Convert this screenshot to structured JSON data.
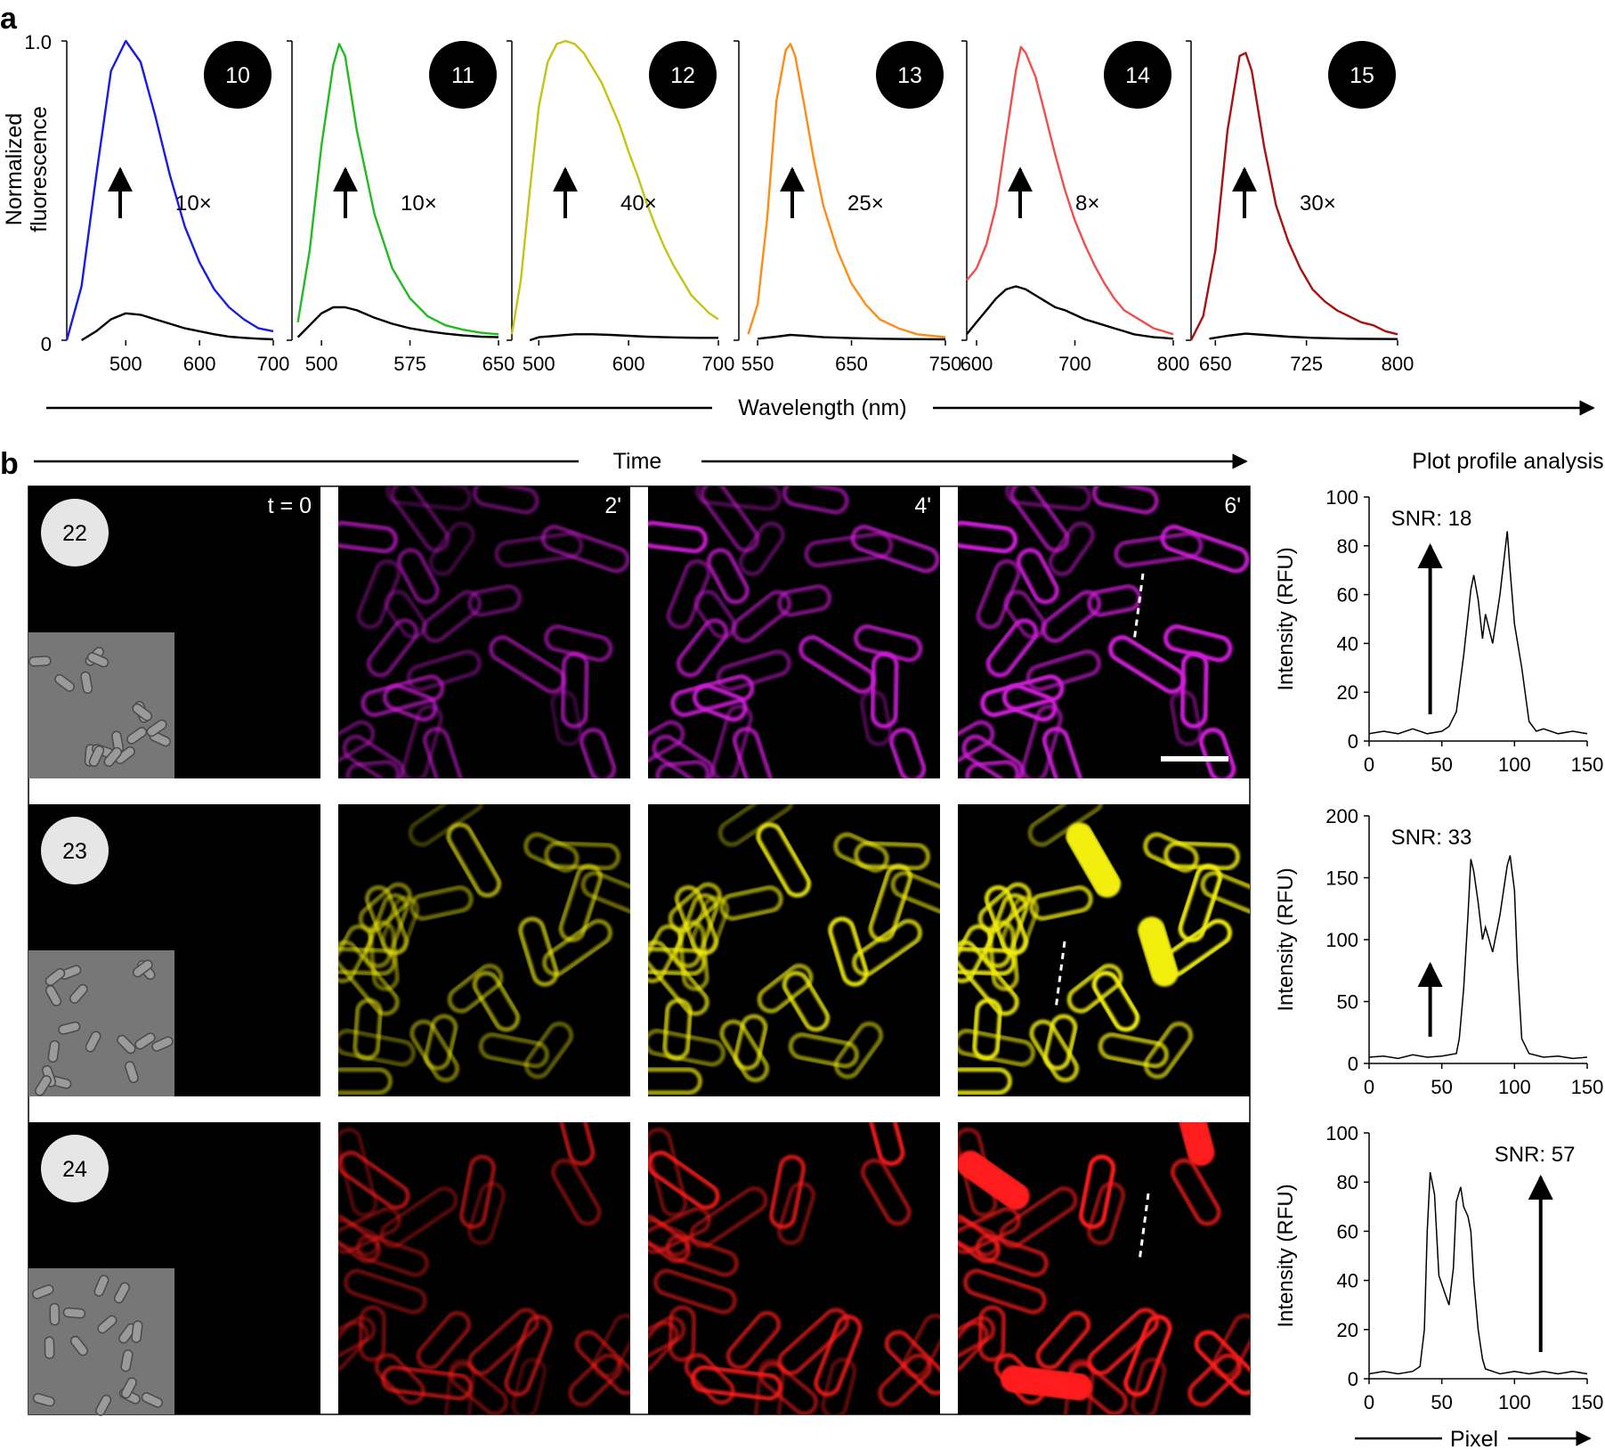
{
  "panel_a": {
    "letter": "a",
    "ylabel_line1": "Normalized",
    "ylabel_line2": "fluorescence",
    "xlabel": "Wavelength (nm)",
    "y_tick_top": "1.0",
    "y_tick_bottom": "0",
    "colors": [
      "#1a1ae6",
      "#22bb22",
      "#c4c414",
      "#ff8c14",
      "#ef4f4f",
      "#a81212"
    ]
  },
  "panel_b": {
    "letter": "b",
    "time_label": "Time",
    "plot_title": "Plot profile analysis",
    "time_points": [
      "t = 0",
      "2'",
      "4'",
      "6'"
    ],
    "rows": [
      {
        "compound": "22",
        "tint": "#d11fd9"
      },
      {
        "compound": "23",
        "tint": "#f2ee0d"
      },
      {
        "compound": "24",
        "tint": "#ff1a1a"
      }
    ],
    "xlabel": "Pixel",
    "ylabel": "Intensity (RFU)"
  },
  "chart_data": [
    {
      "type": "line",
      "compound": "10",
      "fold": "10×",
      "xlim": [
        420,
        700
      ],
      "ylim": [
        0,
        1
      ],
      "xticks": [
        "500",
        "600",
        "700"
      ],
      "series": [
        {
          "color": "#1a1ae6",
          "x": [
            420,
            440,
            460,
            480,
            500,
            520,
            540,
            560,
            580,
            600,
            620,
            640,
            660,
            680,
            700
          ],
          "y": [
            0,
            0.18,
            0.55,
            0.9,
            1.0,
            0.93,
            0.75,
            0.55,
            0.38,
            0.26,
            0.17,
            0.11,
            0.07,
            0.04,
            0.03
          ]
        },
        {
          "color": "#000000",
          "x": [
            440,
            460,
            480,
            500,
            520,
            540,
            560,
            580,
            600,
            620,
            640,
            660,
            680,
            700
          ],
          "y": [
            0,
            0.03,
            0.07,
            0.09,
            0.085,
            0.07,
            0.055,
            0.04,
            0.03,
            0.02,
            0.012,
            0.008,
            0.005,
            0.003
          ]
        }
      ]
    },
    {
      "type": "line",
      "compound": "11",
      "fold": "10×",
      "xlim": [
        475,
        650
      ],
      "ylim": [
        0,
        1
      ],
      "xticks": [
        "500",
        "575",
        "650"
      ],
      "series": [
        {
          "color": "#22bb22",
          "x": [
            480,
            490,
            500,
            510,
            515,
            520,
            530,
            545,
            560,
            575,
            590,
            605,
            620,
            635,
            650
          ],
          "y": [
            0.06,
            0.3,
            0.65,
            0.92,
            0.99,
            0.95,
            0.7,
            0.42,
            0.24,
            0.14,
            0.08,
            0.05,
            0.035,
            0.025,
            0.02
          ]
        },
        {
          "color": "#000000",
          "x": [
            480,
            490,
            500,
            510,
            520,
            530,
            545,
            560,
            575,
            590,
            605,
            620,
            635,
            650
          ],
          "y": [
            0.01,
            0.05,
            0.09,
            0.11,
            0.11,
            0.1,
            0.075,
            0.055,
            0.04,
            0.03,
            0.022,
            0.016,
            0.012,
            0.01
          ]
        }
      ]
    },
    {
      "type": "line",
      "compound": "12",
      "fold": "40×",
      "xlim": [
        470,
        700
      ],
      "ylim": [
        0,
        1
      ],
      "xticks": [
        "500",
        "600",
        "700"
      ],
      "series": [
        {
          "color": "#c4c414",
          "x": [
            470,
            480,
            490,
            500,
            510,
            520,
            530,
            540,
            550,
            560,
            570,
            580,
            590,
            600,
            610,
            620,
            630,
            640,
            650,
            660,
            670,
            680,
            690,
            700
          ],
          "y": [
            0.02,
            0.2,
            0.5,
            0.78,
            0.93,
            0.99,
            1.0,
            0.99,
            0.96,
            0.91,
            0.86,
            0.79,
            0.72,
            0.63,
            0.55,
            0.46,
            0.38,
            0.31,
            0.25,
            0.2,
            0.15,
            0.12,
            0.09,
            0.07
          ]
        },
        {
          "color": "#000000",
          "x": [
            490,
            500,
            520,
            540,
            560,
            580,
            600,
            620,
            640,
            660,
            680,
            700
          ],
          "y": [
            0,
            0.01,
            0.015,
            0.02,
            0.02,
            0.018,
            0.015,
            0.012,
            0.01,
            0.009,
            0.008,
            0.008
          ]
        }
      ]
    },
    {
      "type": "line",
      "compound": "13",
      "fold": "25×",
      "xlim": [
        530,
        750
      ],
      "ylim": [
        0,
        1
      ],
      "xticks": [
        "550",
        "650",
        "750"
      ],
      "series": [
        {
          "color": "#ff8c14",
          "x": [
            540,
            550,
            560,
            570,
            580,
            585,
            590,
            600,
            610,
            620,
            635,
            650,
            665,
            680,
            700,
            720,
            735,
            750
          ],
          "y": [
            0.02,
            0.12,
            0.4,
            0.8,
            0.97,
            0.99,
            0.95,
            0.78,
            0.6,
            0.45,
            0.3,
            0.19,
            0.12,
            0.07,
            0.04,
            0.02,
            0.015,
            0.01
          ]
        },
        {
          "color": "#000000",
          "x": [
            550,
            570,
            585,
            600,
            620,
            650,
            680,
            710,
            750
          ],
          "y": [
            0.005,
            0.012,
            0.018,
            0.015,
            0.01,
            0.007,
            0.005,
            0.004,
            0.003
          ]
        }
      ]
    },
    {
      "type": "line",
      "compound": "14",
      "fold": "8×",
      "xlim": [
        590,
        800
      ],
      "ylim": [
        0,
        1
      ],
      "xticks": [
        "600",
        "700",
        "800"
      ],
      "series": [
        {
          "color": "#ef4f4f",
          "x": [
            590,
            600,
            610,
            620,
            630,
            640,
            645,
            650,
            660,
            670,
            680,
            690,
            700,
            710,
            720,
            730,
            740,
            750,
            760,
            770,
            780,
            790,
            800
          ],
          "y": [
            0.2,
            0.24,
            0.32,
            0.45,
            0.68,
            0.9,
            0.98,
            0.96,
            0.88,
            0.75,
            0.62,
            0.5,
            0.4,
            0.32,
            0.25,
            0.19,
            0.14,
            0.1,
            0.08,
            0.06,
            0.04,
            0.03,
            0.02
          ]
        },
        {
          "color": "#000000",
          "x": [
            590,
            600,
            610,
            620,
            630,
            640,
            650,
            660,
            670,
            680,
            690,
            700,
            710,
            720,
            730,
            740,
            750,
            760,
            770,
            780,
            790,
            800
          ],
          "y": [
            0.02,
            0.06,
            0.1,
            0.14,
            0.17,
            0.18,
            0.17,
            0.15,
            0.13,
            0.11,
            0.1,
            0.085,
            0.07,
            0.06,
            0.05,
            0.04,
            0.03,
            0.02,
            0.015,
            0.01,
            0.008,
            0.005
          ]
        }
      ]
    },
    {
      "type": "line",
      "compound": "15",
      "fold": "30×",
      "xlim": [
        630,
        800
      ],
      "ylim": [
        0,
        1
      ],
      "xticks": [
        "650",
        "725",
        "800"
      ],
      "series": [
        {
          "color": "#a81212",
          "x": [
            630,
            640,
            650,
            660,
            670,
            675,
            680,
            690,
            700,
            710,
            720,
            730,
            740,
            750,
            760,
            770,
            780,
            790,
            800
          ],
          "y": [
            0.0,
            0.08,
            0.3,
            0.7,
            0.95,
            0.96,
            0.9,
            0.65,
            0.45,
            0.33,
            0.24,
            0.17,
            0.13,
            0.1,
            0.08,
            0.06,
            0.05,
            0.03,
            0.02
          ]
        },
        {
          "color": "#000000",
          "x": [
            645,
            660,
            675,
            690,
            710,
            730,
            760,
            800
          ],
          "y": [
            0.005,
            0.015,
            0.022,
            0.018,
            0.012,
            0.008,
            0.005,
            0.004
          ]
        }
      ]
    },
    {
      "type": "line",
      "row": "22",
      "snr": "SNR: 18",
      "xlim": [
        0,
        150
      ],
      "ylim": [
        0,
        100
      ],
      "xticks": [
        "0",
        "50",
        "100",
        "150"
      ],
      "yticks": [
        "0",
        "20",
        "40",
        "60",
        "80",
        "100"
      ],
      "series": [
        {
          "color": "#000000",
          "x": [
            0,
            10,
            20,
            30,
            40,
            50,
            55,
            60,
            65,
            70,
            72,
            75,
            78,
            80,
            85,
            90,
            95,
            97,
            100,
            105,
            110,
            115,
            120,
            130,
            140,
            150
          ],
          "y": [
            3,
            4,
            3,
            5,
            3,
            4,
            6,
            12,
            35,
            62,
            68,
            58,
            42,
            52,
            40,
            60,
            86,
            70,
            48,
            30,
            8,
            4,
            5,
            3,
            4,
            3
          ]
        }
      ]
    },
    {
      "type": "line",
      "row": "23",
      "snr": "SNR: 33",
      "xlim": [
        0,
        150
      ],
      "ylim": [
        0,
        200
      ],
      "xticks": [
        "0",
        "50",
        "100",
        "150"
      ],
      "yticks": [
        "0",
        "50",
        "100",
        "150",
        "200"
      ],
      "series": [
        {
          "color": "#000000",
          "x": [
            0,
            10,
            20,
            30,
            40,
            50,
            60,
            62,
            65,
            68,
            70,
            72,
            75,
            78,
            80,
            85,
            90,
            95,
            97,
            100,
            102,
            105,
            110,
            120,
            130,
            140,
            150
          ],
          "y": [
            5,
            6,
            4,
            7,
            5,
            6,
            8,
            20,
            60,
            120,
            165,
            155,
            130,
            100,
            110,
            90,
            120,
            160,
            168,
            140,
            80,
            20,
            8,
            5,
            6,
            4,
            5
          ]
        }
      ]
    },
    {
      "type": "line",
      "row": "24",
      "snr": "SNR: 57",
      "xlim": [
        0,
        150
      ],
      "ylim": [
        0,
        100
      ],
      "xticks": [
        "0",
        "50",
        "100",
        "150"
      ],
      "yticks": [
        "0",
        "20",
        "40",
        "60",
        "80",
        "100"
      ],
      "series": [
        {
          "color": "#000000",
          "x": [
            0,
            10,
            20,
            30,
            35,
            38,
            40,
            42,
            45,
            48,
            52,
            55,
            58,
            60,
            63,
            65,
            68,
            70,
            72,
            75,
            78,
            80,
            85,
            90,
            100,
            110,
            120,
            130,
            140,
            150
          ],
          "y": [
            2,
            3,
            2,
            3,
            5,
            20,
            60,
            84,
            75,
            42,
            35,
            30,
            45,
            72,
            78,
            70,
            66,
            60,
            40,
            20,
            8,
            4,
            3,
            2,
            3,
            2,
            3,
            2,
            3,
            2
          ]
        }
      ]
    }
  ]
}
